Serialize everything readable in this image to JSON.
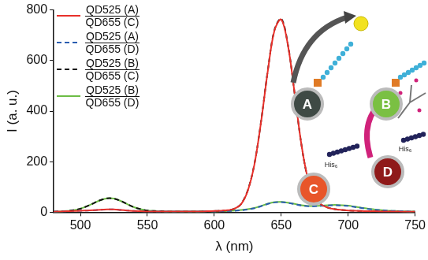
{
  "chart_data": {
    "type": "line",
    "x_label": "λ (nm)",
    "y_label": "I (a. u.)",
    "x": [
      480,
      485,
      490,
      495,
      500,
      505,
      510,
      515,
      520,
      525,
      530,
      535,
      540,
      545,
      550,
      555,
      560,
      565,
      570,
      575,
      580,
      585,
      590,
      595,
      600,
      605,
      610,
      615,
      620,
      625,
      630,
      635,
      640,
      645,
      650,
      655,
      660,
      665,
      670,
      675,
      680,
      685,
      690,
      695,
      700,
      705,
      710,
      715,
      720,
      725,
      730,
      735,
      740,
      745,
      750
    ],
    "xlim": [
      480,
      750
    ],
    "xticks": [
      500,
      550,
      600,
      650,
      700,
      750
    ],
    "ylim": [
      0,
      800
    ],
    "yticks": [
      0,
      200,
      400,
      600,
      800
    ],
    "grid": false,
    "legend": "upper left",
    "series": [
      {
        "name": [
          "QD525 (A)",
          "QD655 (C)"
        ],
        "color": "#e8302a",
        "line_style": "solid",
        "values": [
          2,
          3,
          4,
          5,
          6,
          7,
          8,
          10,
          11,
          11,
          9,
          7,
          5,
          4,
          3,
          3,
          3,
          3,
          3,
          3,
          3,
          3,
          3,
          4,
          5,
          6,
          8,
          14,
          32,
          85,
          190,
          360,
          560,
          720,
          762,
          660,
          470,
          270,
          130,
          60,
          30,
          18,
          12,
          9,
          7,
          6,
          5,
          4,
          4,
          3,
          3,
          3,
          2,
          2,
          2
        ]
      },
      {
        "name": [
          "QD525 (A)",
          "QD655 (D)"
        ],
        "color": "#2a5db0",
        "line_style": "dashed",
        "values": [
          2,
          3,
          4,
          5,
          6,
          7,
          8,
          10,
          11,
          11,
          9,
          7,
          5,
          4,
          3,
          3,
          3,
          3,
          3,
          3,
          3,
          3,
          3,
          4,
          3,
          4,
          5,
          6,
          8,
          11,
          16,
          24,
          33,
          39,
          40,
          37,
          32,
          27,
          24,
          24,
          25,
          27,
          28,
          27,
          25,
          21,
          17,
          13,
          10,
          8,
          6,
          5,
          4,
          3,
          3
        ]
      },
      {
        "name": [
          "QD525 (B)",
          "QD655 (C)"
        ],
        "color": "#111111",
        "line_style": "dashed",
        "values": [
          2,
          3,
          5,
          8,
          14,
          24,
          36,
          48,
          55,
          54,
          45,
          32,
          20,
          12,
          7,
          5,
          4,
          3,
          3,
          3,
          3,
          3,
          3,
          4,
          5,
          6,
          8,
          14,
          33,
          87,
          192,
          362,
          562,
          722,
          765,
          662,
          470,
          270,
          130,
          60,
          30,
          18,
          12,
          9,
          7,
          6,
          5,
          4,
          4,
          3,
          3,
          3,
          2,
          2,
          2
        ]
      },
      {
        "name": [
          "QD525 (B)",
          "QD655 (D)"
        ],
        "color": "#6cbd45",
        "line_style": "solid",
        "values": [
          2,
          3,
          5,
          8,
          14,
          24,
          36,
          48,
          55,
          54,
          45,
          32,
          20,
          12,
          7,
          5,
          4,
          3,
          3,
          3,
          3,
          3,
          3,
          4,
          3,
          4,
          5,
          7,
          9,
          12,
          17,
          25,
          34,
          40,
          41,
          38,
          33,
          28,
          25,
          25,
          26,
          28,
          29,
          28,
          26,
          22,
          18,
          14,
          11,
          8,
          6,
          5,
          4,
          3,
          3
        ]
      }
    ],
    "annotations": [
      "A",
      "B",
      "C",
      "D",
      "His₆",
      "His₆"
    ]
  }
}
